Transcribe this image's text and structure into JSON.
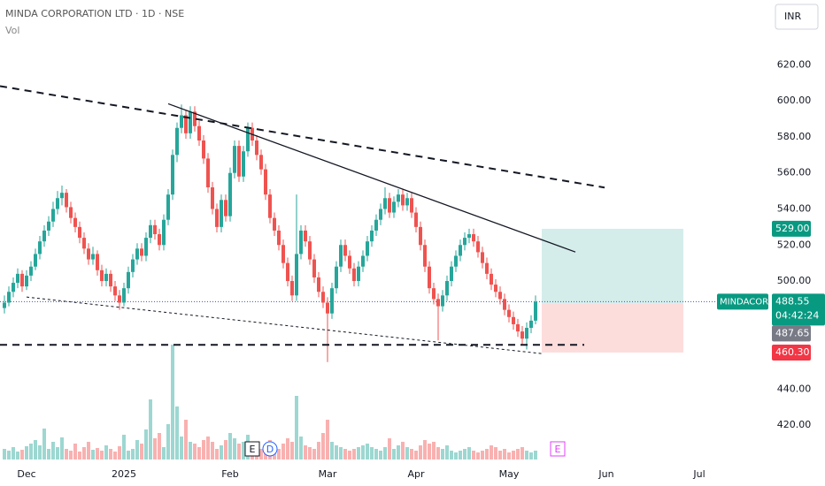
{
  "chart_data": {
    "type": "candlestick",
    "title": "MINDA CORPORATION LTD · 1D · NSE",
    "volume_label": "Vol",
    "currency": "INR",
    "symbol": "MINDACORP",
    "countdown": "04:42:24",
    "up_color": "#26a69a",
    "down_color": "#ef5350",
    "xlim": [
      -1,
      173
    ],
    "ylim": [
      397,
      656
    ],
    "xticks": [
      {
        "value": 5,
        "label": "Dec"
      },
      {
        "value": 27,
        "label": "2025"
      },
      {
        "value": 51,
        "label": "Feb"
      },
      {
        "value": 73,
        "label": "Mar"
      },
      {
        "value": 93,
        "label": "Apr"
      },
      {
        "value": 114,
        "label": "May"
      },
      {
        "value": 136,
        "label": "Jun"
      },
      {
        "value": 157,
        "label": "Jul"
      }
    ],
    "yticks": [
      {
        "value": 420,
        "label": "420.00"
      },
      {
        "value": 440,
        "label": "440.00"
      },
      {
        "value": 460,
        "label": "460.00"
      },
      {
        "value": 480,
        "label": "480.00"
      },
      {
        "value": 500,
        "label": "500.00"
      },
      {
        "value": 520,
        "label": "520.00"
      },
      {
        "value": 540,
        "label": "540.00"
      },
      {
        "value": 560,
        "label": "560.00"
      },
      {
        "value": 580,
        "label": "580.00"
      },
      {
        "value": 600,
        "label": "600.00"
      },
      {
        "value": 620,
        "label": "620.00"
      }
    ],
    "candles": [
      [
        485,
        492,
        482,
        488
      ],
      [
        488,
        497,
        486,
        494
      ],
      [
        494,
        502,
        491,
        499
      ],
      [
        499,
        507,
        496,
        504
      ],
      [
        504,
        506,
        494,
        497
      ],
      [
        497,
        506,
        495,
        503
      ],
      [
        503,
        511,
        500,
        508
      ],
      [
        508,
        518,
        506,
        515
      ],
      [
        515,
        525,
        512,
        522
      ],
      [
        522,
        531,
        519,
        528
      ],
      [
        528,
        536,
        525,
        533
      ],
      [
        533,
        544,
        530,
        540
      ],
      [
        540,
        550,
        537,
        546
      ],
      [
        546,
        553,
        542,
        549
      ],
      [
        549,
        551,
        538,
        541
      ],
      [
        541,
        544,
        532,
        535
      ],
      [
        535,
        538,
        527,
        530
      ],
      [
        530,
        533,
        521,
        524
      ],
      [
        524,
        527,
        515,
        518
      ],
      [
        518,
        521,
        509,
        512
      ],
      [
        512,
        519,
        509,
        515
      ],
      [
        515,
        517,
        503,
        506
      ],
      [
        506,
        509,
        497,
        500
      ],
      [
        500,
        507,
        497,
        504
      ],
      [
        504,
        506,
        494,
        497
      ],
      [
        497,
        500,
        489,
        492
      ],
      [
        492,
        495,
        484,
        488
      ],
      [
        488,
        499,
        486,
        496
      ],
      [
        496,
        508,
        493,
        505
      ],
      [
        505,
        515,
        502,
        512
      ],
      [
        512,
        521,
        509,
        518
      ],
      [
        518,
        521,
        511,
        514
      ],
      [
        514,
        527,
        511,
        524
      ],
      [
        524,
        534,
        521,
        531
      ],
      [
        531,
        534,
        523,
        526
      ],
      [
        526,
        529,
        517,
        520
      ],
      [
        520,
        537,
        517,
        534
      ],
      [
        534,
        551,
        531,
        548
      ],
      [
        548,
        573,
        545,
        570
      ],
      [
        570,
        588,
        566,
        585
      ],
      [
        585,
        598,
        582,
        592
      ],
      [
        592,
        595,
        579,
        582
      ],
      [
        582,
        597,
        579,
        594
      ],
      [
        594,
        597,
        583,
        586
      ],
      [
        586,
        589,
        575,
        578
      ],
      [
        578,
        581,
        565,
        568
      ],
      [
        568,
        571,
        549,
        552
      ],
      [
        552,
        555,
        537,
        540
      ],
      [
        540,
        543,
        527,
        530
      ],
      [
        530,
        548,
        527,
        545
      ],
      [
        545,
        548,
        533,
        536
      ],
      [
        536,
        563,
        533,
        560
      ],
      [
        560,
        578,
        557,
        575
      ],
      [
        575,
        578,
        555,
        558
      ],
      [
        558,
        575,
        555,
        572
      ],
      [
        572,
        588,
        569,
        585
      ],
      [
        585,
        588,
        575,
        578
      ],
      [
        578,
        581,
        567,
        570
      ],
      [
        570,
        573,
        559,
        562
      ],
      [
        562,
        565,
        545,
        548
      ],
      [
        548,
        551,
        532,
        535
      ],
      [
        535,
        538,
        525,
        528
      ],
      [
        528,
        531,
        517,
        520
      ],
      [
        520,
        523,
        507,
        510
      ],
      [
        510,
        513,
        497,
        500
      ],
      [
        500,
        503,
        489,
        492
      ],
      [
        492,
        548,
        489,
        515
      ],
      [
        515,
        531,
        512,
        528
      ],
      [
        528,
        531,
        519,
        522
      ],
      [
        522,
        525,
        509,
        512
      ],
      [
        512,
        515,
        499,
        502
      ],
      [
        502,
        505,
        491,
        494
      ],
      [
        494,
        497,
        485,
        488
      ],
      [
        488,
        491,
        455,
        482
      ],
      [
        482,
        499,
        479,
        496
      ],
      [
        496,
        511,
        493,
        508
      ],
      [
        508,
        523,
        505,
        520
      ],
      [
        520,
        523,
        511,
        514
      ],
      [
        514,
        517,
        504,
        507
      ],
      [
        507,
        510,
        497,
        500
      ],
      [
        500,
        511,
        497,
        508
      ],
      [
        508,
        517,
        505,
        514
      ],
      [
        514,
        525,
        511,
        522
      ],
      [
        522,
        531,
        519,
        528
      ],
      [
        528,
        537,
        525,
        534
      ],
      [
        534,
        543,
        531,
        540
      ],
      [
        540,
        552,
        537,
        546
      ],
      [
        546,
        549,
        535,
        538
      ],
      [
        538,
        547,
        535,
        544
      ],
      [
        544,
        551,
        541,
        548
      ],
      [
        548,
        551,
        539,
        542
      ],
      [
        542,
        549,
        539,
        546
      ],
      [
        546,
        549,
        535,
        538
      ],
      [
        538,
        541,
        527,
        530
      ],
      [
        530,
        533,
        517,
        520
      ],
      [
        520,
        523,
        505,
        508
      ],
      [
        508,
        511,
        493,
        496
      ],
      [
        496,
        499,
        487,
        490
      ],
      [
        490,
        493,
        467,
        486
      ],
      [
        486,
        495,
        483,
        492
      ],
      [
        492,
        503,
        489,
        500
      ],
      [
        500,
        511,
        497,
        508
      ],
      [
        508,
        517,
        505,
        514
      ],
      [
        514,
        523,
        511,
        520
      ],
      [
        520,
        527,
        517,
        524
      ],
      [
        524,
        529,
        521,
        526
      ],
      [
        526,
        529,
        519,
        522
      ],
      [
        522,
        525,
        513,
        516
      ],
      [
        516,
        519,
        507,
        510
      ],
      [
        510,
        513,
        501,
        504
      ],
      [
        504,
        507,
        495,
        498
      ],
      [
        498,
        501,
        491,
        494
      ],
      [
        494,
        497,
        487,
        490
      ],
      [
        490,
        493,
        481,
        484
      ],
      [
        484,
        487,
        477,
        480
      ],
      [
        480,
        483,
        473,
        476
      ],
      [
        476,
        479,
        469,
        472
      ],
      [
        472,
        475,
        465,
        468
      ],
      [
        468,
        477,
        462,
        474
      ],
      [
        474,
        481,
        471,
        478
      ],
      [
        478,
        492,
        476,
        488.55
      ]
    ],
    "volume": [
      12,
      10,
      14,
      9,
      11,
      15,
      18,
      22,
      16,
      35,
      12,
      20,
      14,
      25,
      12,
      10,
      18,
      9,
      14,
      20,
      11,
      13,
      10,
      16,
      12,
      9,
      15,
      28,
      10,
      12,
      22,
      18,
      34,
      68,
      24,
      30,
      14,
      40,
      130,
      60,
      26,
      45,
      20,
      18,
      14,
      22,
      26,
      20,
      12,
      16,
      22,
      30,
      24,
      18,
      20,
      28,
      14,
      10,
      12,
      16,
      22,
      14,
      12,
      18,
      24,
      20,
      72,
      26,
      16,
      14,
      12,
      20,
      30,
      45,
      20,
      16,
      14,
      12,
      10,
      12,
      14,
      16,
      18,
      14,
      12,
      10,
      14,
      24,
      12,
      16,
      20,
      14,
      12,
      10,
      16,
      22,
      18,
      20,
      14,
      12,
      16,
      10,
      8,
      10,
      12,
      14,
      10,
      8,
      10,
      12,
      16,
      14,
      10,
      12,
      8,
      10,
      12,
      14,
      10,
      8,
      10
    ],
    "last_price": {
      "value": 488.55,
      "label": "488.55"
    },
    "position": {
      "x": [
        121.4,
        153.4
      ],
      "target": {
        "value": 529,
        "label": "529.00"
      },
      "entry": {
        "value": 487.65,
        "label": "487.65"
      },
      "stop": {
        "value": 460.3,
        "label": "460.30"
      }
    },
    "trendlines": [
      {
        "style": "dashed",
        "x": [
          -1,
          135.6
        ],
        "y": [
          608.2,
          551.9
        ]
      },
      {
        "style": "solid",
        "x": [
          37,
          129
        ],
        "y": [
          598.4,
          516.1
        ]
      },
      {
        "style": "dashed",
        "x": [
          -1,
          131
        ],
        "y": [
          464.6,
          464.6
        ]
      },
      {
        "style": "dotted",
        "x": [
          5,
          121.4
        ],
        "y": [
          491.1,
          459.7
        ]
      }
    ],
    "events": [
      {
        "label": "E",
        "x": 56,
        "color": "#131722"
      },
      {
        "label": "D",
        "x": 60,
        "color": "#2962ff"
      },
      {
        "label": "E",
        "x": 125,
        "color": "#e040fb"
      }
    ]
  }
}
